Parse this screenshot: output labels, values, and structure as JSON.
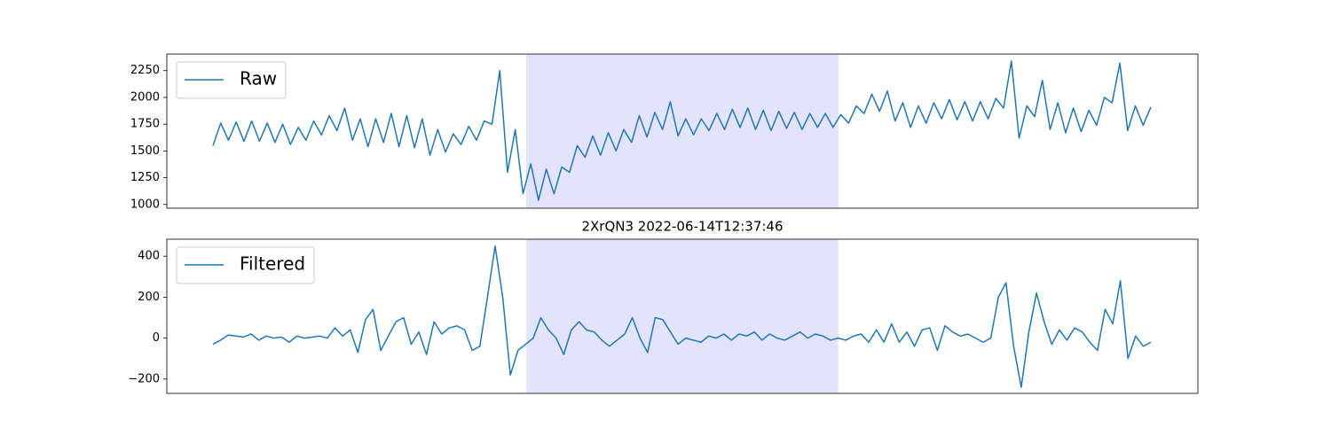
{
  "chart_data": [
    {
      "type": "line",
      "series": [
        {
          "name": "Raw",
          "color": "#1f77b4",
          "values": [
            1550,
            1760,
            1600,
            1770,
            1590,
            1780,
            1590,
            1760,
            1580,
            1750,
            1560,
            1720,
            1600,
            1780,
            1650,
            1830,
            1690,
            1900,
            1600,
            1800,
            1540,
            1800,
            1580,
            1850,
            1540,
            1830,
            1530,
            1800,
            1460,
            1700,
            1490,
            1660,
            1560,
            1730,
            1600,
            1780,
            1750,
            2250,
            1300,
            1700,
            1100,
            1380,
            1040,
            1330,
            1100,
            1350,
            1300,
            1550,
            1440,
            1640,
            1460,
            1670,
            1500,
            1700,
            1580,
            1830,
            1630,
            1860,
            1700,
            1960,
            1640,
            1800,
            1650,
            1800,
            1690,
            1850,
            1700,
            1890,
            1720,
            1900,
            1700,
            1880,
            1690,
            1870,
            1710,
            1860,
            1700,
            1850,
            1720,
            1850,
            1720,
            1840,
            1760,
            1920,
            1850,
            2030,
            1870,
            2060,
            1780,
            1950,
            1720,
            1920,
            1760,
            1950,
            1800,
            1980,
            1790,
            1960,
            1780,
            1960,
            1800,
            1990,
            1900,
            2340,
            1620,
            1920,
            1820,
            2160,
            1700,
            1950,
            1670,
            1900,
            1680,
            1880,
            1740,
            2000,
            1950,
            2320,
            1690,
            1920,
            1740,
            1910
          ]
        }
      ],
      "ylim": [
        965,
        2405
      ],
      "yticks": [
        1000,
        1250,
        1500,
        1750,
        2000,
        2250
      ],
      "legend": "upper left",
      "highlight": {
        "start": 40.4,
        "end": 80.7,
        "color": "#e3e3fb"
      }
    },
    {
      "type": "line",
      "title": "2XrQN3 2022-06-14T12:37:46",
      "series": [
        {
          "name": "Filtered",
          "color": "#1f77b4",
          "values": [
            -30,
            -10,
            15,
            10,
            5,
            20,
            -10,
            10,
            0,
            5,
            -20,
            10,
            0,
            5,
            10,
            0,
            50,
            10,
            40,
            -70,
            90,
            140,
            -60,
            10,
            80,
            100,
            -30,
            30,
            -80,
            80,
            20,
            50,
            60,
            40,
            -60,
            -40,
            200,
            450,
            200,
            -180,
            -60,
            -30,
            0,
            100,
            40,
            0,
            -80,
            40,
            80,
            40,
            30,
            -10,
            -40,
            -10,
            20,
            100,
            0,
            -70,
            100,
            90,
            30,
            -30,
            0,
            -10,
            -20,
            10,
            0,
            20,
            -10,
            20,
            10,
            30,
            -10,
            20,
            0,
            -10,
            10,
            30,
            0,
            20,
            10,
            -10,
            0,
            -10,
            10,
            20,
            -20,
            40,
            -20,
            70,
            -20,
            30,
            -40,
            40,
            50,
            -60,
            60,
            30,
            10,
            20,
            0,
            -20,
            0,
            200,
            270,
            -40,
            -240,
            30,
            220,
            80,
            -30,
            40,
            -10,
            50,
            30,
            -20,
            -60,
            140,
            70,
            280,
            -100,
            10,
            -40,
            -20
          ]
        }
      ],
      "ylim": [
        -270,
        483
      ],
      "yticks": [
        {
          "value": -200,
          "label": "−200"
        },
        0,
        200,
        400
      ],
      "legend": "upper left",
      "highlight": {
        "start": 41.1,
        "end": 82.0,
        "color": "#e3e3fb"
      }
    }
  ]
}
